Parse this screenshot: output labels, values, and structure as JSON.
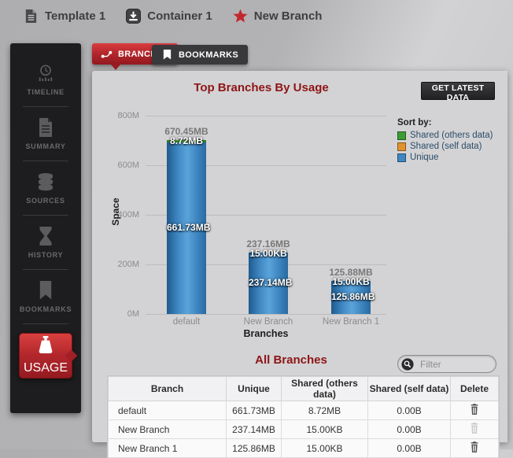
{
  "colors": {
    "accent_red": "#b2272c",
    "title_red": "#8e1515",
    "bar_blue": "#3f86bf",
    "bar_green": "#3d9b35",
    "bar_orange": "#e0922f",
    "sidebar_bg": "#1d1d1f",
    "panel_bg": "#d3d3d5"
  },
  "breadcrumb": {
    "items": [
      {
        "label": "Template 1",
        "icon": "document"
      },
      {
        "label": "Container 1",
        "icon": "container"
      },
      {
        "label": "New Branch",
        "icon": "star"
      }
    ]
  },
  "sidebar": {
    "items": [
      {
        "label": "TIMELINE",
        "icon": "timeline",
        "active": false
      },
      {
        "label": "SUMMARY",
        "icon": "summary",
        "active": false
      },
      {
        "label": "SOURCES",
        "icon": "sources",
        "active": false
      },
      {
        "label": "HISTORY",
        "icon": "history",
        "active": false
      },
      {
        "label": "BOOKMARKS",
        "icon": "bookmarks",
        "active": false
      },
      {
        "label": "USAGE",
        "icon": "usage",
        "active": true
      }
    ]
  },
  "tabs": [
    {
      "label": "BRANCHES",
      "icon": "branch",
      "active": true
    },
    {
      "label": "BOOKMARKS",
      "icon": "bookmark",
      "active": false
    }
  ],
  "panel": {
    "get_latest_button": "GET LATEST DATA"
  },
  "chart_data": {
    "type": "bar",
    "stacked": true,
    "title": "Top Branches By Usage",
    "xlabel": "Branches",
    "ylabel": "Space",
    "ylim": [
      0,
      800
    ],
    "yticks": [
      "0M",
      "200M",
      "400M",
      "600M",
      "800M"
    ],
    "ytick_values_mb": [
      0,
      200,
      400,
      600,
      800
    ],
    "grid": true,
    "legend": {
      "title": "Sort by:",
      "position": "right",
      "entries": [
        {
          "label": "Shared (others data)",
          "color": "#3d9b35"
        },
        {
          "label": "Shared (self data)",
          "color": "#e0922f"
        },
        {
          "label": "Unique",
          "color": "#3f86bf"
        }
      ]
    },
    "categories": [
      "default",
      "New Branch",
      "New Branch 1"
    ],
    "series": [
      {
        "name": "Shared (others data)",
        "color": "#3d9b35",
        "values_mb": [
          8.72,
          0.0146,
          0.0146
        ],
        "labels": [
          "8.72MB",
          "15.00KB",
          "15.00KB"
        ]
      },
      {
        "name": "Shared (self data)",
        "color": "#e0922f",
        "values_mb": [
          0,
          0,
          0
        ]
      },
      {
        "name": "Unique",
        "color": "#3f86bf",
        "values_mb": [
          661.73,
          237.14,
          125.86
        ],
        "labels": [
          "661.73MB",
          "237.14MB",
          "125.86MB"
        ]
      }
    ],
    "totals": {
      "values_mb": [
        670.45,
        237.16,
        125.88
      ],
      "labels": [
        "670.45MB",
        "237.16MB",
        "125.88MB"
      ]
    }
  },
  "all_branches": {
    "title": "All Branches",
    "filter_placeholder": "Filter",
    "columns": [
      "Branch",
      "Unique",
      "Shared (others data)",
      "Shared (self data)",
      "Delete"
    ],
    "rows": [
      {
        "branch": "default",
        "unique": "661.73MB",
        "shared_others": "8.72MB",
        "shared_self": "0.00B",
        "deletable": true
      },
      {
        "branch": "New Branch",
        "unique": "237.14MB",
        "shared_others": "15.00KB",
        "shared_self": "0.00B",
        "deletable": false
      },
      {
        "branch": "New Branch 1",
        "unique": "125.86MB",
        "shared_others": "15.00KB",
        "shared_self": "0.00B",
        "deletable": true
      }
    ]
  }
}
